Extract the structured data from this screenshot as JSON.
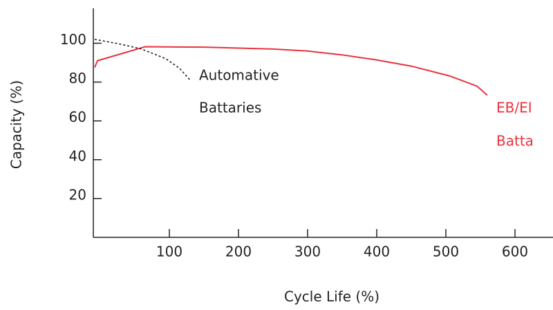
{
  "chart_data": {
    "type": "line",
    "xlabel": "Cycle Life (%)",
    "ylabel": "Capacity (%)",
    "xlim": [
      -10,
      655
    ],
    "ylim": [
      0,
      118
    ],
    "xticks": [
      100,
      200,
      300,
      400,
      500,
      600
    ],
    "yticks": [
      20,
      40,
      60,
      80,
      100
    ],
    "series": [
      {
        "color": "#e8323c",
        "dashed": false,
        "x": [
          -8,
          -4,
          65,
          150,
          250,
          300,
          350,
          400,
          450,
          505,
          545,
          560
        ],
        "values": [
          87.5,
          91,
          98.2,
          98,
          97,
          96,
          94,
          91.4,
          88.2,
          83.2,
          77.9,
          73.2
        ]
      },
      {
        "color": "#222222",
        "dashed": true,
        "x": [
          -8,
          30,
          60,
          95,
          115,
          130
        ],
        "values": [
          102,
          99.5,
          97,
          92,
          87,
          81
        ]
      }
    ],
    "annotations": [
      "Automative",
      "Battaries",
      "EB/EI",
      "Batta"
    ]
  }
}
